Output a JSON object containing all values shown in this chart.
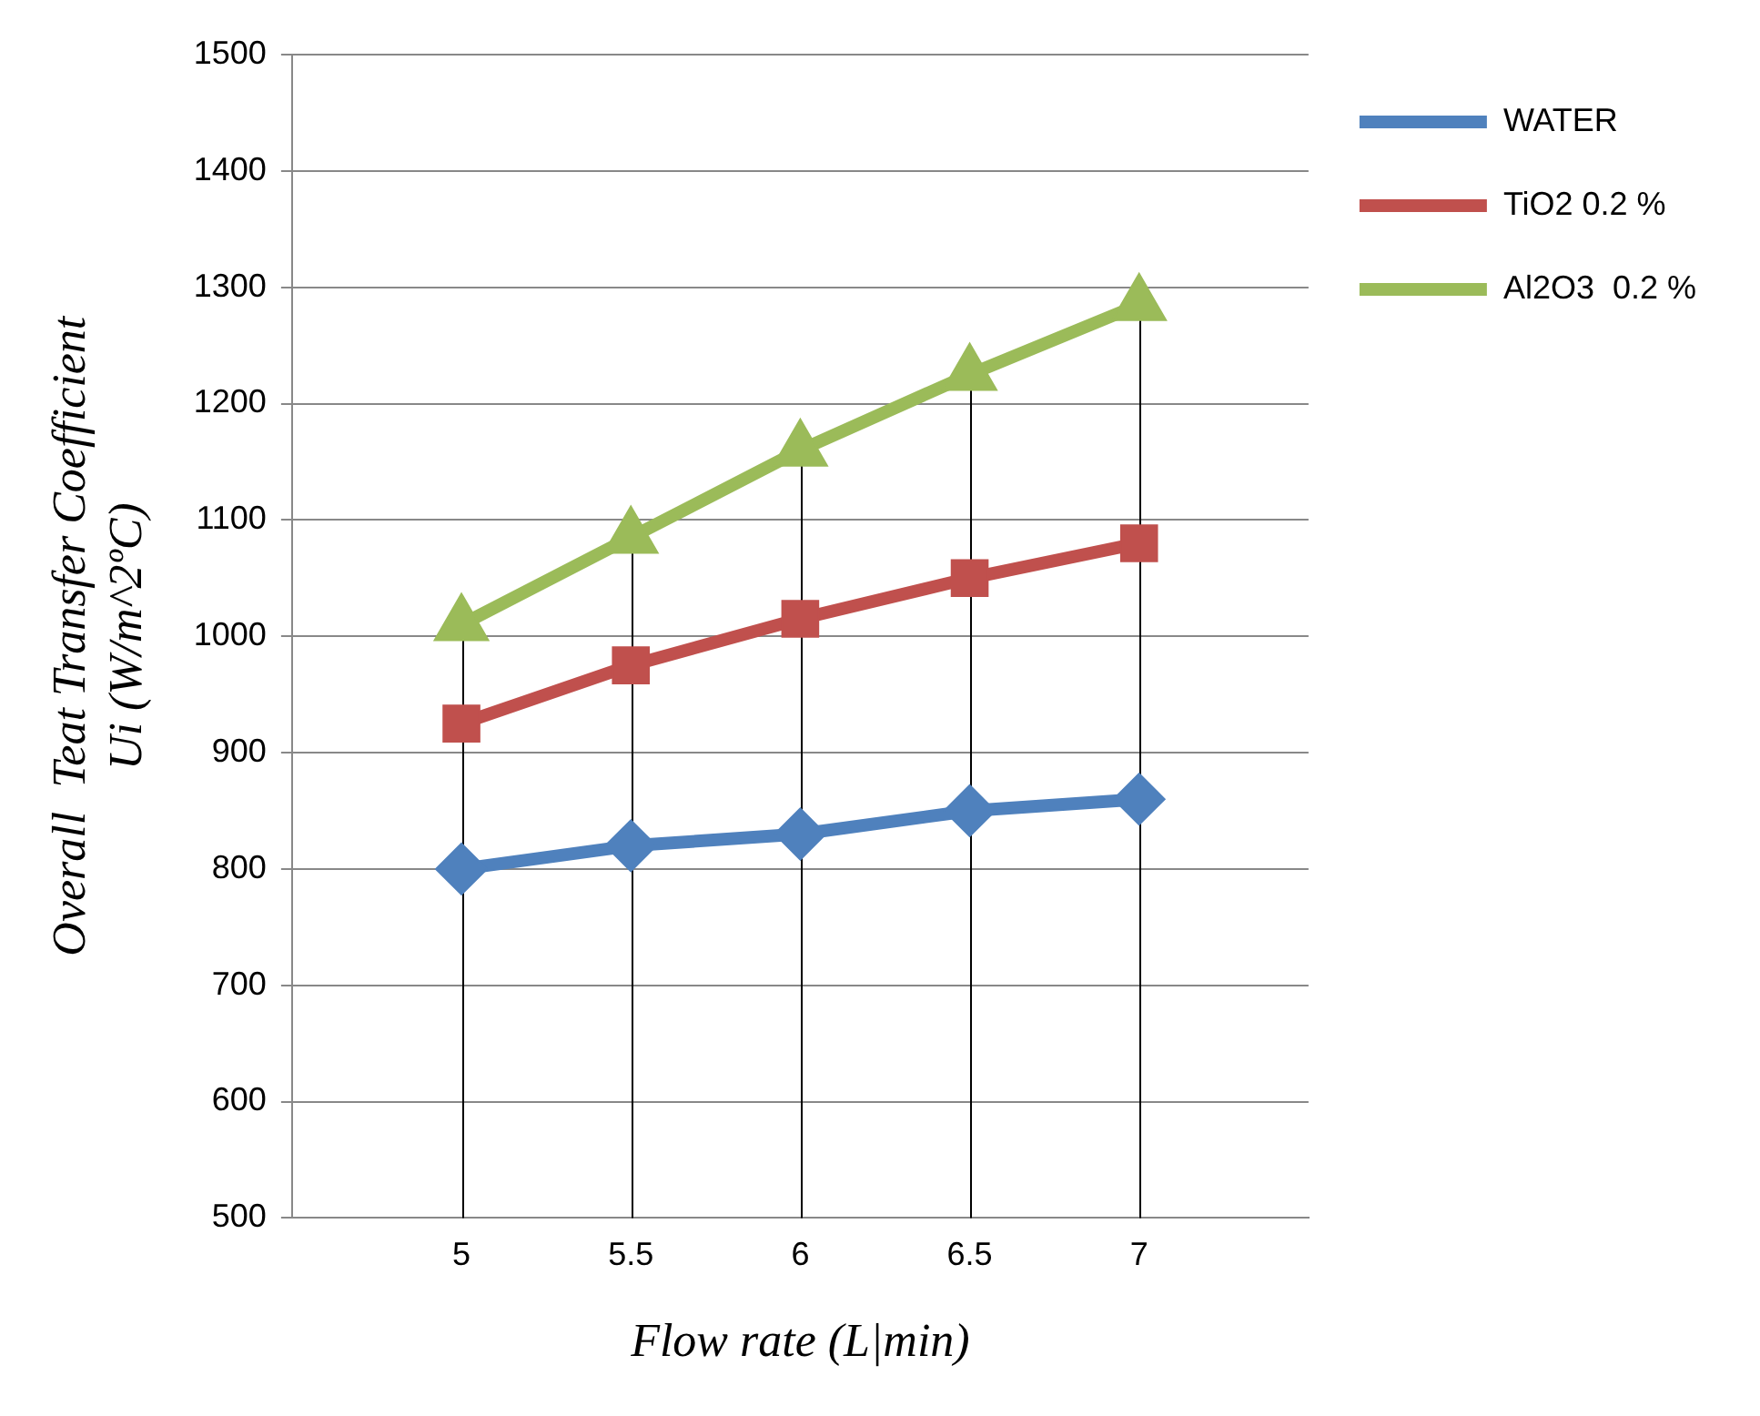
{
  "chart_data": {
    "type": "line",
    "xlabel": "Flow rate (L|min)",
    "ylabel": "Overall  Teat Transfer Coefficient\nUi (W/m^2ºC)",
    "x": [
      5,
      5.5,
      6,
      6.5,
      7
    ],
    "xlim": [
      4.5,
      7.5
    ],
    "xticks": [
      5,
      5.5,
      6,
      6.5,
      7
    ],
    "ylim": [
      500,
      1500
    ],
    "yticks": [
      500,
      600,
      700,
      800,
      900,
      1000,
      1100,
      1200,
      1300,
      1400,
      1500
    ],
    "grid": "y",
    "legend": "right",
    "series": [
      {
        "name": "WATER",
        "color": "#4f81bd",
        "marker": "diamond",
        "values": [
          800,
          820,
          830,
          850,
          860
        ]
      },
      {
        "name": "TiO2 0.2 %",
        "color": "#c0504d",
        "marker": "square",
        "values": [
          925,
          975,
          1015,
          1050,
          1080
        ]
      },
      {
        "name": "Al2O3  0.2 %",
        "color": "#9bbb59",
        "marker": "triangle",
        "values": [
          1010,
          1085,
          1160,
          1225,
          1285
        ]
      }
    ],
    "ref_lines": [
      {
        "axis": "x",
        "value": 5,
        "color": "#000000"
      },
      {
        "axis": "x",
        "value": 5.5,
        "color": "#000000"
      },
      {
        "axis": "x",
        "value": 6,
        "color": "#000000"
      },
      {
        "axis": "x",
        "value": 6.5,
        "color": "#000000"
      },
      {
        "axis": "x",
        "value": 7,
        "color": "#000000"
      }
    ]
  }
}
